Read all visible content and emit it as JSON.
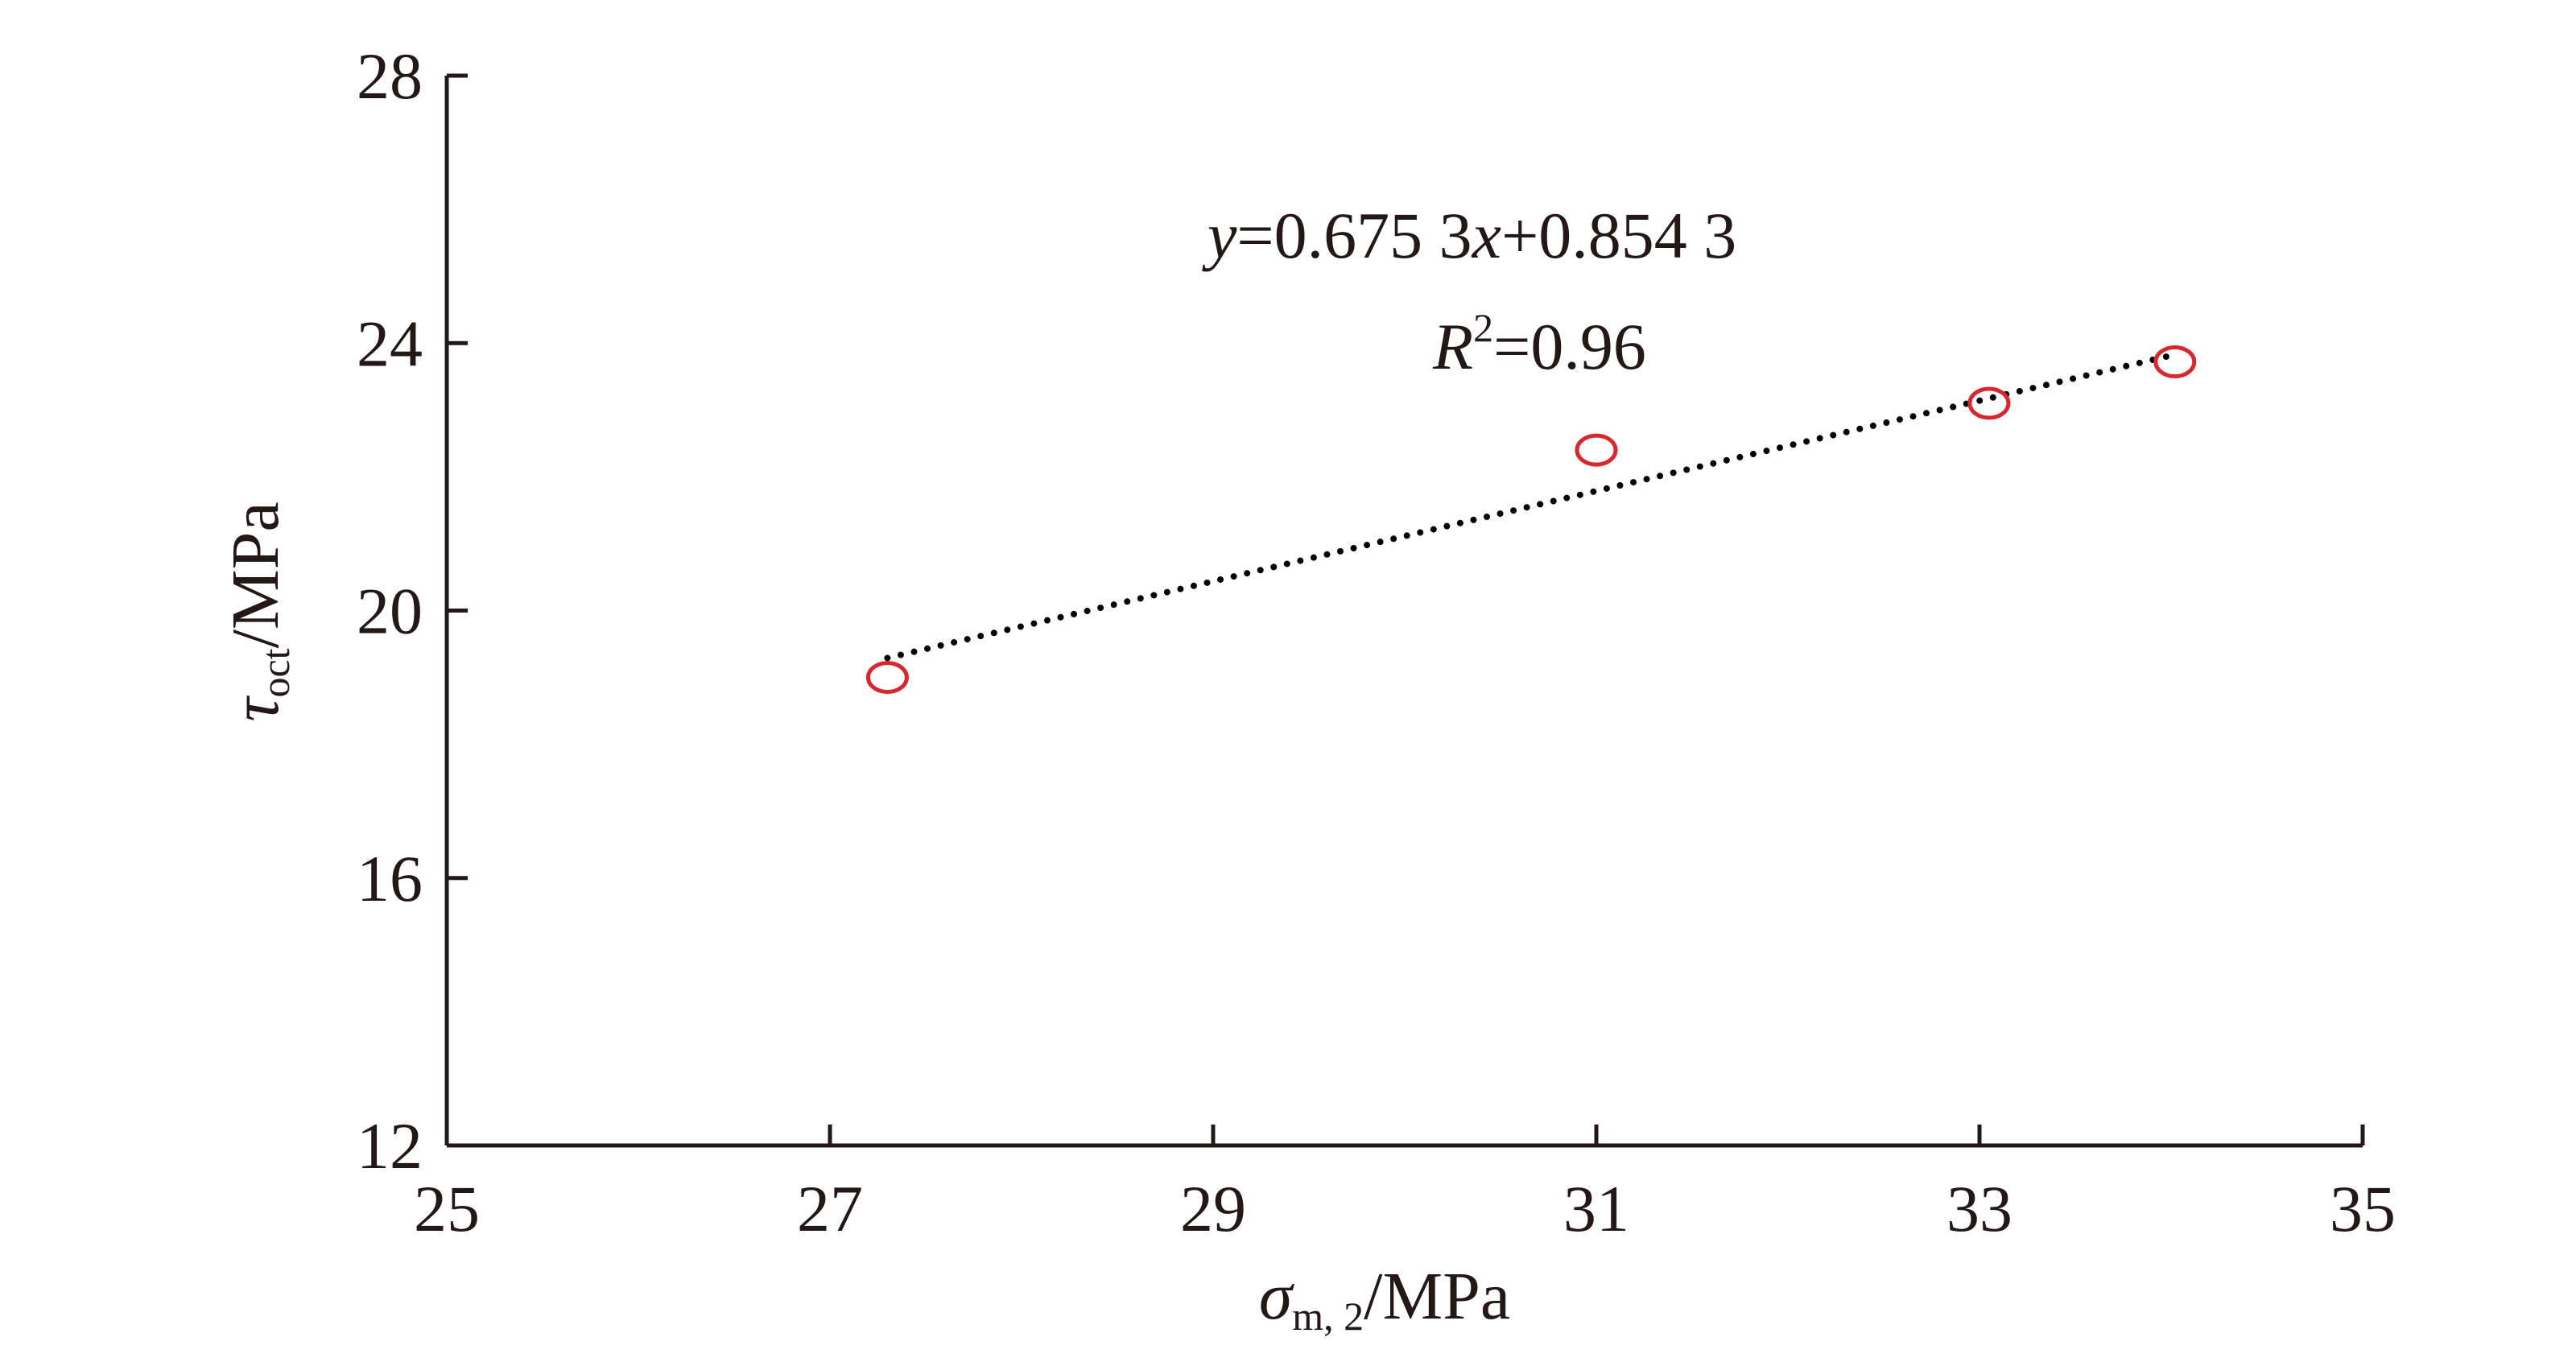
{
  "colors": {
    "axis": "#231815",
    "marker": "#d7282f",
    "trendline": "#000000"
  },
  "chart_data": {
    "type": "scatter",
    "x": [
      27.3,
      31.0,
      33.05,
      34.02
    ],
    "y": [
      19.0,
      22.4,
      23.1,
      23.72
    ],
    "xlim": [
      25,
      35
    ],
    "ylim": [
      12,
      28
    ],
    "xticks": [
      "25",
      "27",
      "29",
      "31",
      "33",
      "35"
    ],
    "yticks": [
      "12",
      "16",
      "20",
      "24",
      "28"
    ],
    "xlabel": {
      "main": "σ",
      "sub": "m, 2",
      "unit": "/MPa"
    },
    "ylabel": {
      "main": "τ",
      "sub": "oct",
      "unit": "/MPa"
    },
    "marker": "open-circle",
    "grid": false,
    "trendline": {
      "style": "dotted",
      "slope": 0.6753,
      "intercept": 0.8543,
      "x_range": [
        27.3,
        34.02
      ]
    },
    "annotation": {
      "y_var": "y",
      "eq_mid": "=0.675 3",
      "x_var": "x",
      "eq_end": "+0.854 3",
      "r_var": "R",
      "r_sup": "2",
      "r_value": "=0.96"
    }
  }
}
